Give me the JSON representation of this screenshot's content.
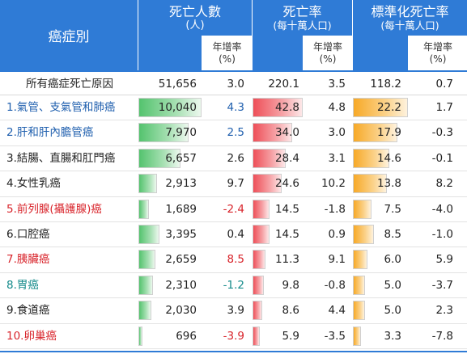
{
  "header": {
    "category": "癌症別",
    "deaths": "死亡人數",
    "deaths_unit": "(人)",
    "rate": "死亡率",
    "rate_unit": "(每十萬人口)",
    "std": "標準化死亡率",
    "std_unit": "(每十萬人口)",
    "growth": "年增率",
    "growth_unit": "(%)"
  },
  "colors": {
    "header_blue": "#2f7bd6",
    "link_blue": "#1f5fae",
    "red": "#d8232a",
    "teal": "#138a8a",
    "dark": "#222222"
  },
  "total": {
    "label": "所有癌症死亡原因",
    "deaths": "51,656",
    "deaths_growth": "3.0",
    "rate": "220.1",
    "rate_growth": "3.5",
    "std": "118.2",
    "std_growth": "0.7"
  },
  "rows": [
    {
      "label": "1.氣管、支氣管和肺癌",
      "label_color": "#1f5fae",
      "deaths": "10,040",
      "deaths_value": 10040,
      "deaths_growth": "4.3",
      "dg_color": "#1f5fae",
      "rate": "42.8",
      "rate_value": 42.8,
      "rate_growth": "4.8",
      "std": "22.2",
      "std_value": 22.2,
      "std_growth": "1.7"
    },
    {
      "label": "2.肝和肝內膽管癌",
      "label_color": "#1f5fae",
      "deaths": "7,970",
      "deaths_value": 7970,
      "deaths_growth": "2.5",
      "dg_color": "#1f5fae",
      "rate": "34.0",
      "rate_value": 34.0,
      "rate_growth": "3.0",
      "std": "17.9",
      "std_value": 17.9,
      "std_growth": "-0.3"
    },
    {
      "label": "3.結腸、直腸和肛門癌",
      "label_color": "#222222",
      "deaths": "6,657",
      "deaths_value": 6657,
      "deaths_growth": "2.6",
      "dg_color": "#222222",
      "rate": "28.4",
      "rate_value": 28.4,
      "rate_growth": "3.1",
      "std": "14.6",
      "std_value": 14.6,
      "std_growth": "-0.1"
    },
    {
      "label": "4.女性乳癌",
      "label_color": "#222222",
      "deaths": "2,913",
      "deaths_value": 2913,
      "deaths_growth": "9.7",
      "dg_color": "#222222",
      "rate": "24.6",
      "rate_value": 24.6,
      "rate_growth": "10.2",
      "std": "13.8",
      "std_value": 13.8,
      "std_growth": "8.2"
    },
    {
      "label": "5.前列腺(攝護腺)癌",
      "label_color": "#d8232a",
      "deaths": "1,689",
      "deaths_value": 1689,
      "deaths_growth": "-2.4",
      "dg_color": "#d8232a",
      "rate": "14.5",
      "rate_value": 14.5,
      "rate_growth": "-1.8",
      "std": "7.5",
      "std_value": 7.5,
      "std_growth": "-4.0"
    },
    {
      "label": "6.口腔癌",
      "label_color": "#222222",
      "deaths": "3,395",
      "deaths_value": 3395,
      "deaths_growth": "0.4",
      "dg_color": "#222222",
      "rate": "14.5",
      "rate_value": 14.5,
      "rate_growth": "0.9",
      "std": "8.5",
      "std_value": 8.5,
      "std_growth": "-1.0"
    },
    {
      "label": "7.胰臟癌",
      "label_color": "#d8232a",
      "deaths": "2,659",
      "deaths_value": 2659,
      "deaths_growth": "8.5",
      "dg_color": "#d8232a",
      "rate": "11.3",
      "rate_value": 11.3,
      "rate_growth": "9.1",
      "std": "6.0",
      "std_value": 6.0,
      "std_growth": "5.9"
    },
    {
      "label": "8.胃癌",
      "label_color": "#138a8a",
      "deaths": "2,310",
      "deaths_value": 2310,
      "deaths_growth": "-1.2",
      "dg_color": "#138a8a",
      "rate": "9.8",
      "rate_value": 9.8,
      "rate_growth": "-0.8",
      "std": "5.0",
      "std_value": 5.0,
      "std_growth": "-3.7"
    },
    {
      "label": "9.食道癌",
      "label_color": "#222222",
      "deaths": "2,030",
      "deaths_value": 2030,
      "deaths_growth": "3.9",
      "dg_color": "#222222",
      "rate": "8.6",
      "rate_value": 8.6,
      "rate_growth": "4.4",
      "std": "5.0",
      "std_value": 5.0,
      "std_growth": "2.3"
    },
    {
      "label": "10.卵巢癌",
      "label_color": "#d8232a",
      "deaths": "696",
      "deaths_value": 696,
      "deaths_growth": "-3.9",
      "dg_color": "#d8232a",
      "rate": "5.9",
      "rate_value": 5.9,
      "rate_growth": "-3.5",
      "std": "3.3",
      "std_value": 3.3,
      "std_growth": "-7.8"
    }
  ]
}
